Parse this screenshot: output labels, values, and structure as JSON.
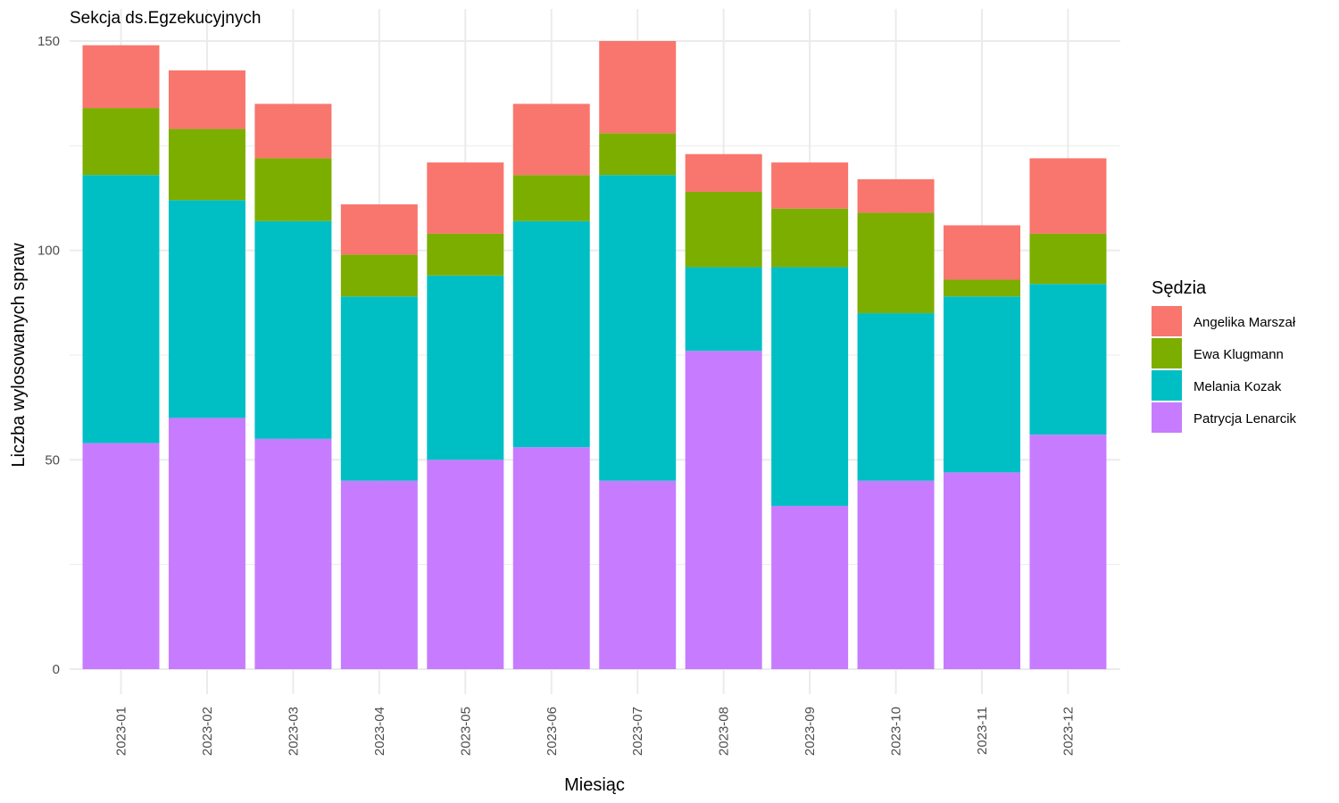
{
  "chart_data": {
    "type": "bar",
    "stacked": true,
    "title": "Sekcja ds.Egzekucyjnych",
    "xlabel": "Miesiąc",
    "ylabel": "Liczba wylosowanych spraw",
    "ylim": [
      0,
      150
    ],
    "yticks": [
      "0",
      "50",
      "100",
      "150"
    ],
    "grid": true,
    "legend_title": "Sędzia",
    "legend_position": "right",
    "categories": [
      "2023-01",
      "2023-02",
      "2023-03",
      "2023-04",
      "2023-05",
      "2023-06",
      "2023-07",
      "2023-08",
      "2023-09",
      "2023-10",
      "2023-11",
      "2023-12"
    ],
    "series": [
      {
        "name": "Angelika Marszał",
        "color": "#F8766D",
        "values": [
          15,
          14,
          13,
          12,
          17,
          17,
          22,
          9,
          11,
          8,
          13,
          18
        ]
      },
      {
        "name": "Ewa Klugmann",
        "color": "#7CAE00",
        "values": [
          16,
          17,
          15,
          10,
          10,
          11,
          10,
          18,
          14,
          24,
          4,
          12
        ]
      },
      {
        "name": "Melania Kozak",
        "color": "#00BFC4",
        "values": [
          64,
          52,
          52,
          44,
          44,
          54,
          73,
          20,
          57,
          40,
          42,
          36
        ]
      },
      {
        "name": "Patrycja Lenarcik",
        "color": "#C77CFF",
        "values": [
          54,
          60,
          55,
          45,
          50,
          53,
          45,
          76,
          39,
          45,
          47,
          56
        ]
      }
    ]
  }
}
